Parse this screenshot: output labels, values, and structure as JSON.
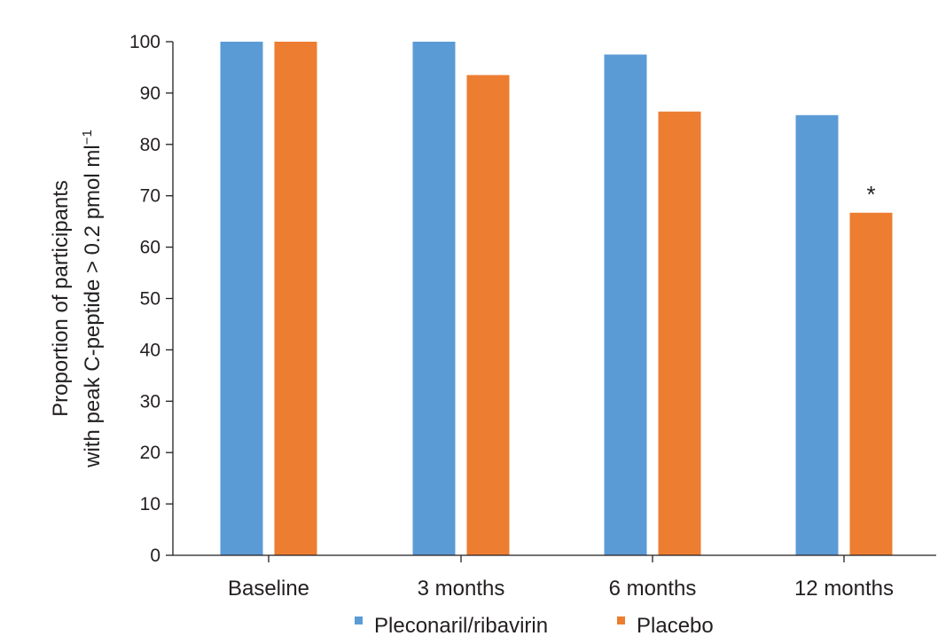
{
  "chart_data": {
    "type": "bar",
    "title": "",
    "xlabel": "",
    "ylabel_line1": "Proportion of participants",
    "ylabel_line2": "with peak C-peptide > 0.2 pmol  ml",
    "ylabel_superscript": "−1",
    "ylim": [
      0,
      100
    ],
    "yticks": [
      0,
      10,
      20,
      30,
      40,
      50,
      60,
      70,
      80,
      90,
      100
    ],
    "grid": false,
    "legend_position": "bottom-center",
    "categories": [
      "Baseline",
      "3 months",
      "6 months",
      "12 months"
    ],
    "series": [
      {
        "name": "Pleconaril/ribavirin",
        "color": "#5b9bd5",
        "values": [
          100,
          100,
          97.5,
          85.7
        ]
      },
      {
        "name": "Placebo",
        "color": "#ed7d31",
        "values": [
          100,
          93.5,
          86.4,
          66.7
        ]
      }
    ],
    "annotations": [
      {
        "text": "*",
        "category": "12 months",
        "series": "Placebo"
      }
    ]
  }
}
